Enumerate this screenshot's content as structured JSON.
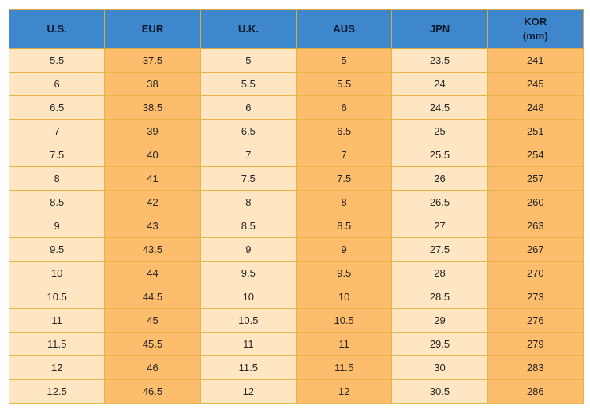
{
  "chart_data": {
    "type": "table",
    "columns": [
      "U.S.",
      "EUR",
      "U.K.",
      "AUS",
      "JPN",
      "KOR\n(mm)"
    ],
    "rows": [
      [
        "5.5",
        "37.5",
        "5",
        "5",
        "23.5",
        "241"
      ],
      [
        "6",
        "38",
        "5.5",
        "5.5",
        "24",
        "245"
      ],
      [
        "6.5",
        "38.5",
        "6",
        "6",
        "24.5",
        "248"
      ],
      [
        "7",
        "39",
        "6.5",
        "6.5",
        "25",
        "251"
      ],
      [
        "7.5",
        "40",
        "7",
        "7",
        "25.5",
        "254"
      ],
      [
        "8",
        "41",
        "7.5",
        "7.5",
        "26",
        "257"
      ],
      [
        "8.5",
        "42",
        "8",
        "8",
        "26.5",
        "260"
      ],
      [
        "9",
        "43",
        "8.5",
        "8.5",
        "27",
        "263"
      ],
      [
        "9.5",
        "43.5",
        "9",
        "9",
        "27.5",
        "267"
      ],
      [
        "10",
        "44",
        "9.5",
        "9.5",
        "28",
        "270"
      ],
      [
        "10.5",
        "44.5",
        "10",
        "10",
        "28.5",
        "273"
      ],
      [
        "11",
        "45",
        "10.5",
        "10.5",
        "29",
        "276"
      ],
      [
        "11.5",
        "45.5",
        "11",
        "11",
        "29.5",
        "279"
      ],
      [
        "12",
        "46",
        "11.5",
        "11.5",
        "30",
        "283"
      ],
      [
        "12.5",
        "46.5",
        "12",
        "12",
        "30.5",
        "286"
      ]
    ]
  },
  "colors": {
    "header_bg": "#3f87cc",
    "light_column": "#fee6c2",
    "dark_column": "#fdbd6c",
    "border": "#e8b448"
  }
}
